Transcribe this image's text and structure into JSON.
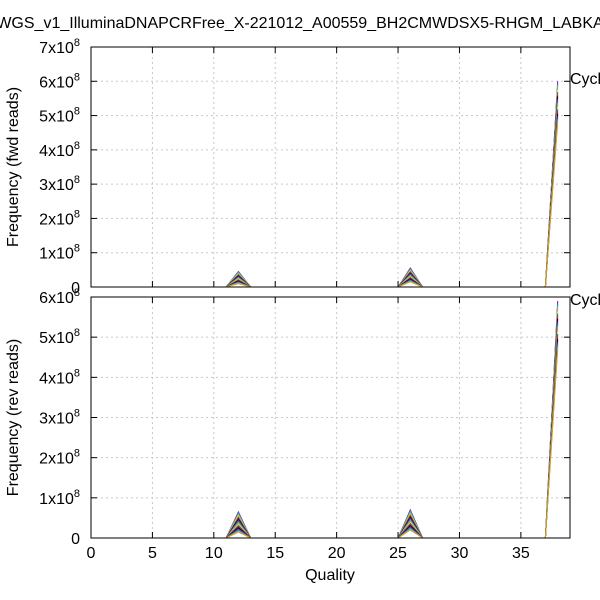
{
  "chart_data": {
    "type": "line",
    "title": "WGS_v1_IlluminaDNAPCRFree_X-221012_A00559_BH2CMWDSX5-RHGM_LABKA",
    "xlabel": "Quality",
    "x_ticks": [
      "0",
      "5",
      "10",
      "15",
      "20",
      "25",
      "30",
      "35"
    ],
    "xlim": [
      0,
      39
    ],
    "legend_label": "Cycl",
    "panels": [
      {
        "name": "fwd",
        "ylabel": "Frequency (fwd reads)",
        "ylim": [
          0,
          700000000
        ],
        "y_ticks": [
          {
            "value": 0,
            "mant": "0",
            "exp": ""
          },
          {
            "value": 100000000,
            "mant": "1x10",
            "exp": "8"
          },
          {
            "value": 200000000,
            "mant": "2x10",
            "exp": "8"
          },
          {
            "value": 300000000,
            "mant": "3x10",
            "exp": "8"
          },
          {
            "value": 400000000,
            "mant": "4x10",
            "exp": "8"
          },
          {
            "value": 500000000,
            "mant": "5x10",
            "exp": "8"
          },
          {
            "value": 600000000,
            "mant": "6x10",
            "exp": "8"
          },
          {
            "value": 700000000,
            "mant": "7x10",
            "exp": "8"
          }
        ],
        "peak_q12_min": 10000000,
        "peak_q12_max": 45000000,
        "peak_q26_min": 15000000,
        "peak_q26_max": 55000000,
        "peak_q38_min": 480000000,
        "peak_q38_max": 600000000
      },
      {
        "name": "rev",
        "ylabel": "Frequency (rev reads)",
        "ylim": [
          0,
          600000000
        ],
        "y_ticks": [
          {
            "value": 0,
            "mant": "0",
            "exp": ""
          },
          {
            "value": 100000000,
            "mant": "1x10",
            "exp": "8"
          },
          {
            "value": 200000000,
            "mant": "2x10",
            "exp": "8"
          },
          {
            "value": 300000000,
            "mant": "3x10",
            "exp": "8"
          },
          {
            "value": 400000000,
            "mant": "4x10",
            "exp": "8"
          },
          {
            "value": 500000000,
            "mant": "5x10",
            "exp": "8"
          },
          {
            "value": 600000000,
            "mant": "6x10",
            "exp": "8"
          }
        ],
        "peak_q12_min": 15000000,
        "peak_q12_max": 65000000,
        "peak_q26_min": 20000000,
        "peak_q26_max": 70000000,
        "peak_q38_min": 470000000,
        "peak_q38_max": 590000000
      }
    ],
    "series_colors": [
      "#9400d3",
      "#009e73",
      "#56b4e9",
      "#e69f00",
      "#f0e442",
      "#0072b2",
      "#e51e10",
      "#000000"
    ],
    "n_series": 20
  }
}
